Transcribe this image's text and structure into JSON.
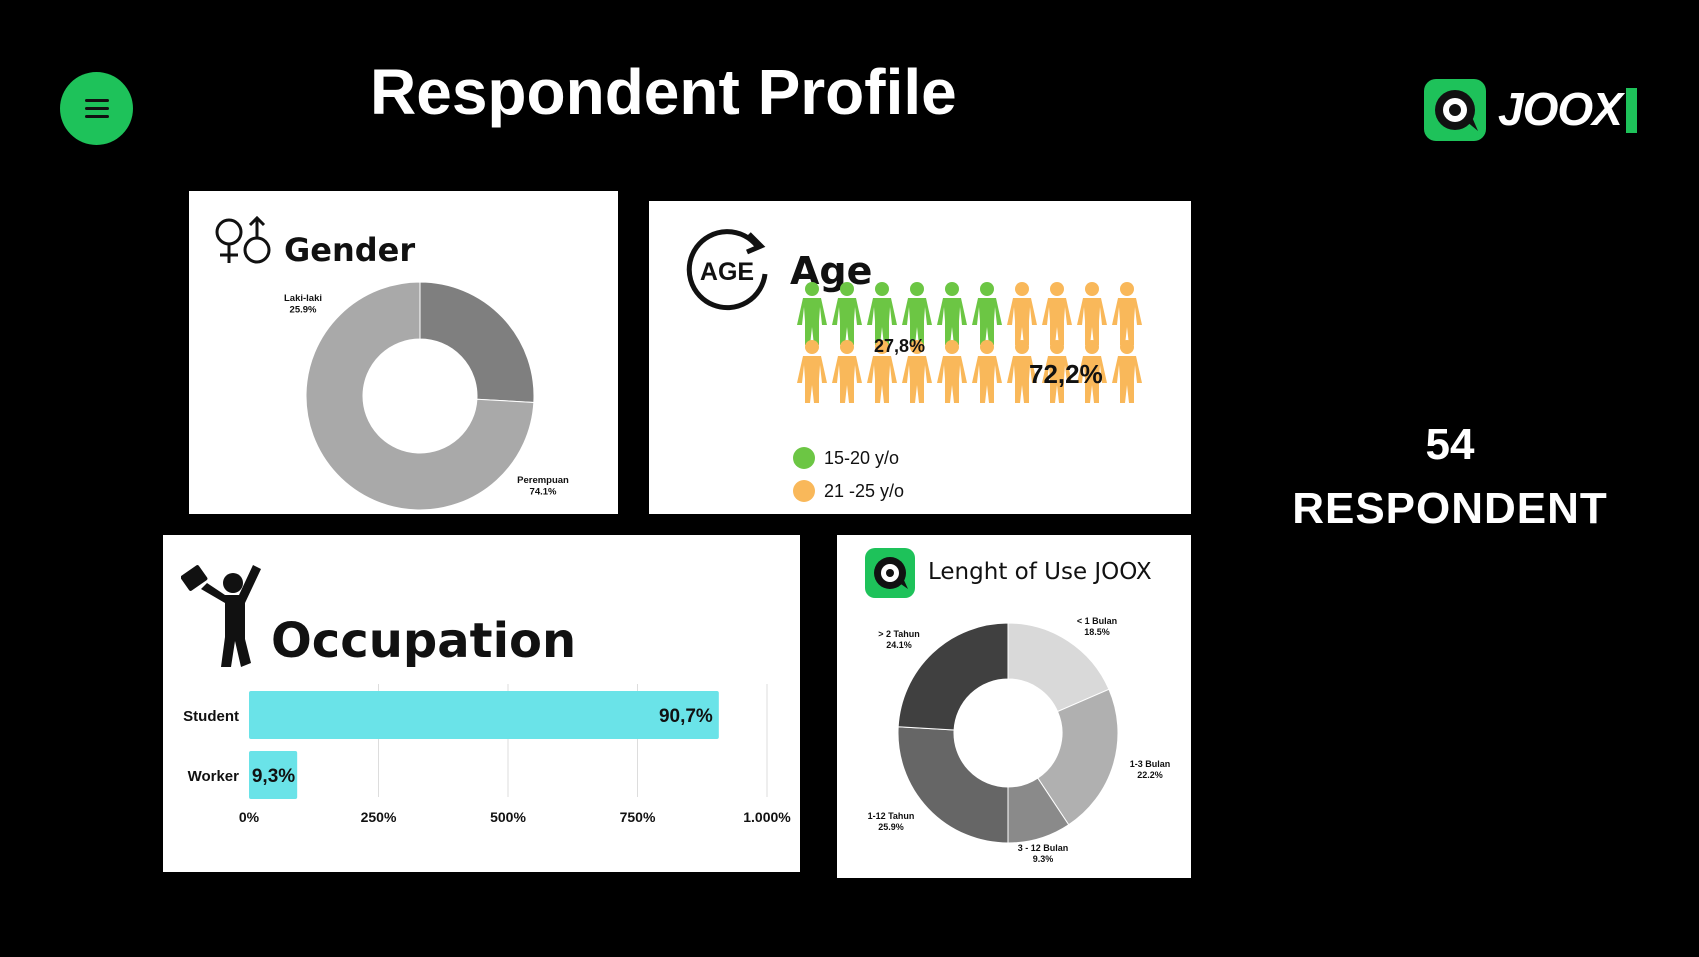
{
  "page": {
    "title": "Respondent Profile",
    "logo_text": "JOOX",
    "respondent_count": "54",
    "respondent_label": "RESPONDENT"
  },
  "colors": {
    "green": "#1ec25a",
    "age_green": "#6cc644",
    "age_orange": "#f9b85a",
    "bar": "#6ae3e8"
  },
  "icons": [
    "menu-icon",
    "joox-logo-icon",
    "gender-symbols-icon",
    "age-cycle-icon",
    "person-icon",
    "worker-briefcase-icon",
    "joox-app-icon"
  ],
  "chart_data": [
    {
      "type": "pie",
      "title": "Gender",
      "labels": [
        "Laki-laki",
        "Perempuan"
      ],
      "values": [
        25.9,
        74.1
      ],
      "value_labels": [
        "25.9%",
        "74.1%"
      ],
      "colors": [
        "#7f7f7f",
        "#a9a9a9"
      ],
      "donut": true
    },
    {
      "type": "table",
      "title": "Age",
      "icon_text": "AGE",
      "total_icons": 20,
      "green_icons": 6,
      "labels": [
        "15-20 y/o",
        "21 -25 y/o"
      ],
      "value_labels": [
        "27,8%",
        "72,2%"
      ],
      "values": [
        27.8,
        72.2
      ]
    },
    {
      "type": "bar",
      "title": "Occupation",
      "orientation": "horizontal",
      "categories": [
        "Student",
        "Worker"
      ],
      "values": [
        90.7,
        9.3
      ],
      "value_labels": [
        "90,7%",
        "9,3%"
      ],
      "xlim": [
        0,
        100
      ],
      "xticks": [
        "0%",
        "250%",
        "500%",
        "750%",
        "1.000%"
      ],
      "grid": true
    },
    {
      "type": "pie",
      "title": "Lenght of Use JOOX",
      "donut": true,
      "labels": [
        "< 1 Bulan",
        "1-3 Bulan",
        "3 - 12 Bulan",
        "1-12 Tahun",
        "> 2 Tahun"
      ],
      "values": [
        18.5,
        22.2,
        9.3,
        25.9,
        24.1
      ],
      "value_labels": [
        "18.5%",
        "22.2%",
        "9.3%",
        "25.9%",
        "24.1%"
      ],
      "colors": [
        "#d9d9d9",
        "#b0b0b0",
        "#8a8a8a",
        "#666666",
        "#404040"
      ]
    }
  ]
}
